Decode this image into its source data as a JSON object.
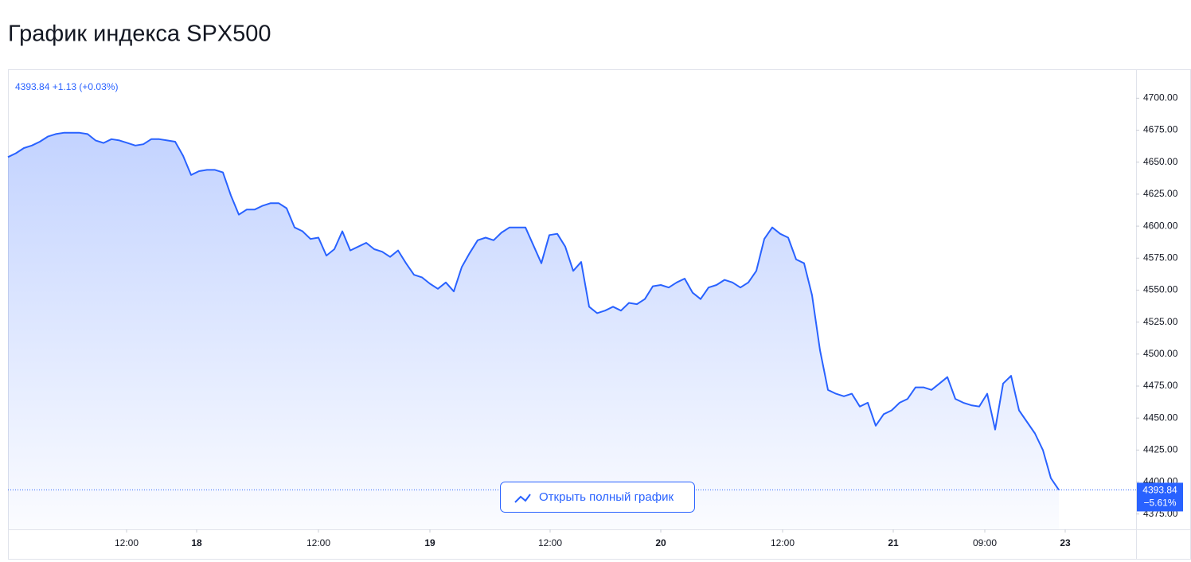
{
  "chart_data": {
    "type": "area",
    "title": "График индекса SPX500",
    "header_label": "4393.84 +1.13 (+0.03%)",
    "last_price_label": "4393.84",
    "change_label": "−5.61%",
    "button": "Открыть полный график",
    "color": "#2962ff",
    "values": [
      4654,
      4657,
      4661,
      4663,
      4666,
      4670,
      4672,
      4673,
      4673,
      4673,
      4672,
      4667,
      4665,
      4668,
      4667,
      4665,
      4663,
      4664,
      4668,
      4668,
      4667,
      4666,
      4655,
      4640,
      4643,
      4644,
      4644,
      4642,
      4624,
      4609,
      4613,
      4613,
      4616,
      4618,
      4618,
      4614,
      4599,
      4596,
      4590,
      4591,
      4577,
      4582,
      4596,
      4581,
      4584,
      4587,
      4582,
      4580,
      4576,
      4581,
      4571,
      4562,
      4560,
      4555,
      4551,
      4556,
      4549,
      4568,
      4579,
      4589,
      4591,
      4589,
      4595,
      4599,
      4599,
      4599,
      4585,
      4571,
      4593,
      4594,
      4584,
      4565,
      4572,
      4537,
      4532,
      4534,
      4537,
      4534,
      4540,
      4539,
      4543,
      4553,
      4554,
      4552,
      4556,
      4559,
      4548,
      4543,
      4552,
      4554,
      4558,
      4556,
      4552,
      4556,
      4565,
      4590,
      4599,
      4594,
      4591,
      4574,
      4571,
      4546,
      4503,
      4472,
      4469,
      4467,
      4469,
      4459,
      4462,
      4444,
      4453,
      4456,
      4462,
      4465,
      4474,
      4474,
      4472,
      4477,
      4482,
      4465,
      4462,
      4460,
      4459,
      4469,
      4441,
      4477,
      4483,
      4456,
      4447,
      4438,
      4425,
      4403,
      4393.84
    ],
    "xlim": [
      0,
      141.5
    ],
    "xticks": [
      {
        "value": 14.9,
        "label": "12:00"
      },
      {
        "value": 23.7,
        "label": "18"
      },
      {
        "value": 39,
        "label": "12:00"
      },
      {
        "value": 53,
        "label": "19"
      },
      {
        "value": 68.1,
        "label": "12:00"
      },
      {
        "value": 82,
        "label": "20"
      },
      {
        "value": 97.3,
        "label": "12:00"
      },
      {
        "value": 111.2,
        "label": "21"
      },
      {
        "value": 122.7,
        "label": "09:00"
      },
      {
        "value": 132.8,
        "label": "23"
      }
    ],
    "ylim": [
      4363,
      4722
    ],
    "yticks": [
      {
        "value": 4375,
        "label": "4375.00"
      },
      {
        "value": 4400,
        "label": "4400.00"
      },
      {
        "value": 4425,
        "label": "4425.00"
      },
      {
        "value": 4450,
        "label": "4450.00"
      },
      {
        "value": 4475,
        "label": "4475.00"
      },
      {
        "value": 4500,
        "label": "4500.00"
      },
      {
        "value": 4525,
        "label": "4525.00"
      },
      {
        "value": 4550,
        "label": "4550.00"
      },
      {
        "value": 4575,
        "label": "4575.00"
      },
      {
        "value": 4600,
        "label": "4600.00"
      },
      {
        "value": 4625,
        "label": "4625.00"
      },
      {
        "value": 4650,
        "label": "4650.00"
      },
      {
        "value": 4675,
        "label": "4675.00"
      },
      {
        "value": 4700,
        "label": "4700.00"
      }
    ]
  }
}
